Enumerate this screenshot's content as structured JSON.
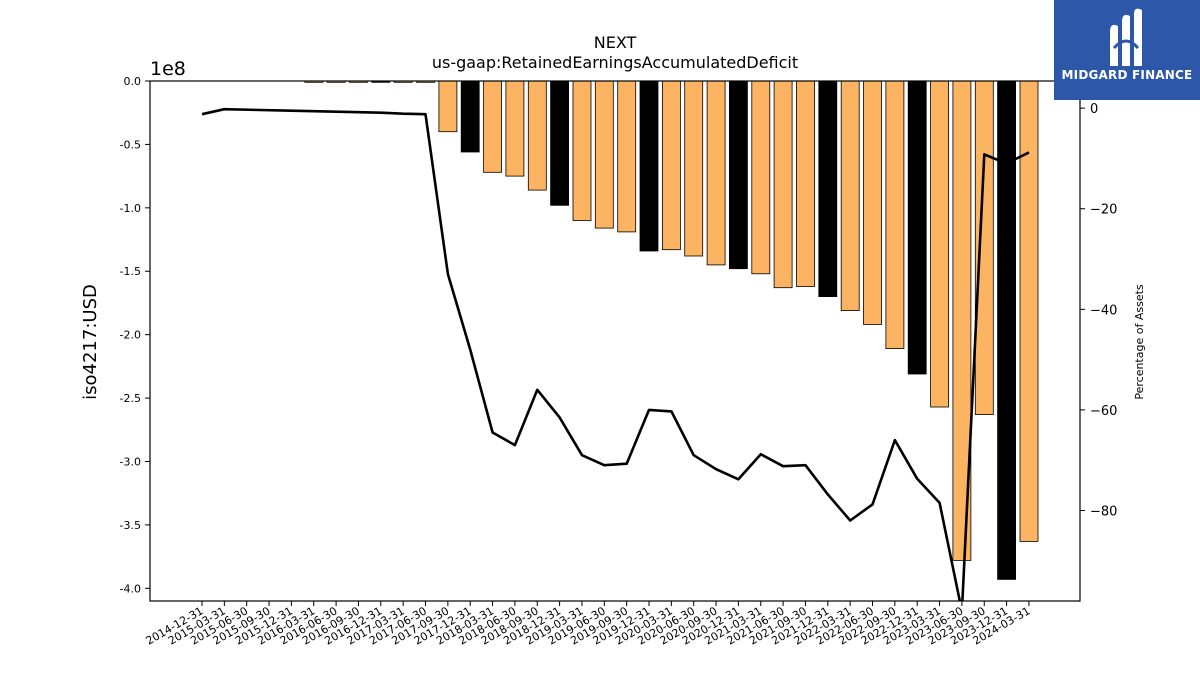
{
  "chart_data": {
    "type": "bar",
    "title": "NEXT",
    "subtitle": "us-gaap:RetainedEarningsAccumulatedDeficit",
    "ylabel": "iso4217:USD",
    "ylabel_right": "Percentage of Assets",
    "y_offset_label": "1e8",
    "ylim": [
      -4.1,
      0
    ],
    "ylim_right": [
      -98,
      5.4
    ],
    "yticks": [
      "0.0",
      "-0.5",
      "-1.0",
      "-1.5",
      "-2.0",
      "-2.5",
      "-3.0",
      "-3.5",
      "-4.0"
    ],
    "yticks_values": [
      0,
      -0.5,
      -1.0,
      -1.5,
      -2.0,
      -2.5,
      -3.0,
      -3.5,
      -4.0
    ],
    "yticks_right": [
      "0",
      "−20",
      "−40",
      "−60",
      "−80"
    ],
    "yticks_right_values": [
      0,
      -20,
      -40,
      -60,
      -80
    ],
    "categories": [
      "2014-12-31",
      "2015-03-31",
      "2015-06-30",
      "2015-09-30",
      "2015-12-31",
      "2016-03-31",
      "2016-06-30",
      "2016-09-30",
      "2016-12-31",
      "2017-03-31",
      "2017-06-30",
      "2017-09-30",
      "2017-12-31",
      "2018-03-31",
      "2018-06-30",
      "2018-09-30",
      "2018-12-31",
      "2019-03-31",
      "2019-06-30",
      "2019-09-30",
      "2019-12-31",
      "2020-03-31",
      "2020-06-30",
      "2020-09-30",
      "2020-12-31",
      "2021-03-31",
      "2021-06-30",
      "2021-09-30",
      "2021-12-31",
      "2022-03-31",
      "2022-06-30",
      "2022-09-30",
      "2022-12-31",
      "2023-03-31",
      "2023-06-30",
      "2023-09-30",
      "2023-12-31",
      "2024-03-31"
    ],
    "series": [
      {
        "type": "bar",
        "unit": "1e8 USD",
        "values": [
          null,
          null,
          null,
          null,
          null,
          -0.01,
          -0.01,
          -0.01,
          -0.01,
          -0.01,
          -0.01,
          -0.4,
          -0.56,
          -0.72,
          -0.75,
          -0.86,
          -0.98,
          -1.1,
          -1.16,
          -1.19,
          -1.34,
          -1.33,
          -1.38,
          -1.45,
          -1.48,
          -1.52,
          -1.63,
          -1.62,
          -1.7,
          -1.81,
          -1.92,
          -2.11,
          -2.31,
          -2.57,
          -3.78,
          -2.63,
          -3.93,
          -3.63
        ],
        "fiscal_year_end": [
          false,
          false,
          false,
          false,
          true,
          false,
          false,
          false,
          true,
          false,
          false,
          false,
          true,
          false,
          false,
          false,
          true,
          false,
          false,
          false,
          true,
          false,
          false,
          false,
          true,
          false,
          false,
          false,
          true,
          false,
          false,
          false,
          true,
          false,
          false,
          false,
          true,
          false
        ],
        "colors": {
          "quarter": "#fdb462",
          "year_end": "#000000"
        }
      },
      {
        "type": "line",
        "unit": "percent",
        "values": [
          -1.2,
          -0.2,
          null,
          null,
          -0.5,
          -0.6,
          -0.7,
          -0.8,
          -0.9,
          -1.1,
          -1.2,
          -33,
          -48,
          -64.5,
          -67,
          -56,
          -61.5,
          -69,
          -71,
          -70.7,
          -60,
          -60.3,
          -69,
          -71.8,
          -73.8,
          -68.8,
          -71.2,
          -71,
          -76.8,
          -82,
          -78.8,
          -66,
          -73.7,
          -78.5,
          -100,
          -9.2,
          -11,
          -8.8
        ],
        "color": "#000000"
      }
    ]
  },
  "logo": {
    "text": "MIDGARD FINANCE",
    "bg": "#2d57a8",
    "fg": "#ffffff"
  }
}
